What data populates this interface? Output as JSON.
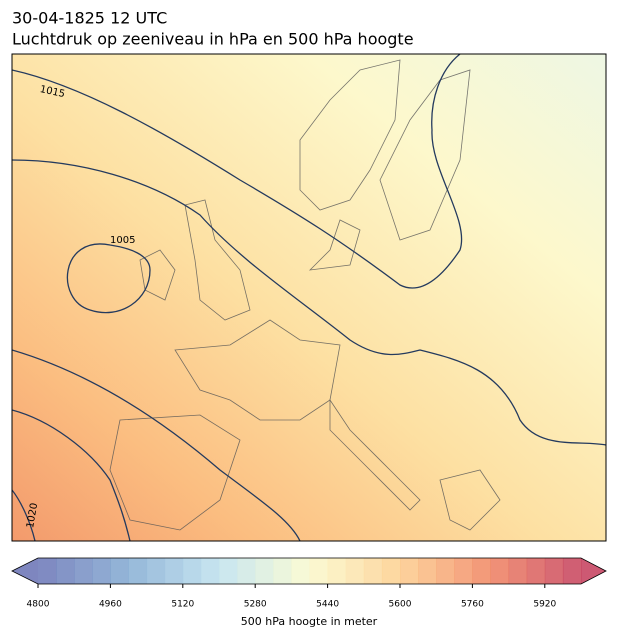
{
  "title": "30-04-1825 12 UTC",
  "subtitle": "Luchtdruk op zeeniveau in hPa en 500 hPa hoogte",
  "contour_labels": [
    1015,
    1005,
    1020
  ],
  "colorbar": {
    "label": "500 hPa hoogte in meter",
    "lim": [
      4800,
      6000
    ],
    "ticks": [
      4800,
      4960,
      5120,
      5280,
      5440,
      5600,
      5760,
      5920
    ],
    "extend": "both"
  }
}
